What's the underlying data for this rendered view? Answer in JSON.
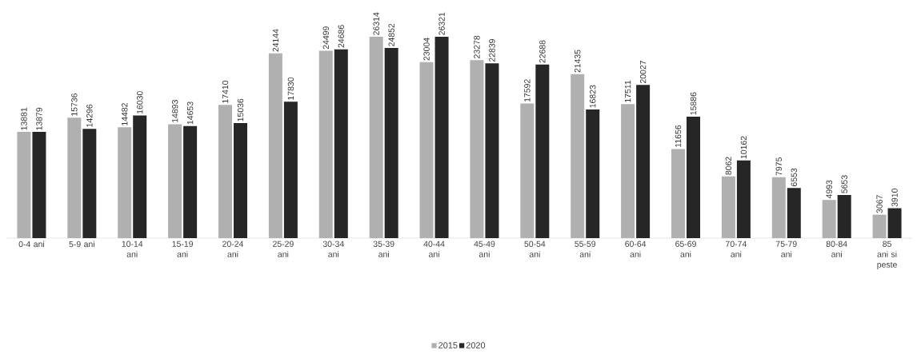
{
  "chart_data": {
    "type": "bar",
    "categories": [
      "0-4 ani",
      "5-9 ani",
      "10-14 ani",
      "15-19 ani",
      "20-24 ani",
      "25-29 ani",
      "30-34 ani",
      "35-39 ani",
      "40-44 ani",
      "45-49 ani",
      "50-54 ani",
      "55-59 ani",
      "60-64 ani",
      "65-69 ani",
      "70-74 ani",
      "75-79 ani",
      "80-84 ani",
      "85 ani si peste"
    ],
    "series": [
      {
        "name": "2015",
        "color": "#b0b0b0",
        "values": [
          13881,
          15736,
          14482,
          14893,
          17410,
          24144,
          24499,
          26314,
          23004,
          23278,
          17592,
          21435,
          17511,
          11656,
          8062,
          7975,
          4993,
          3067
        ]
      },
      {
        "name": "2020",
        "color": "#262626",
        "values": [
          13879,
          14296,
          16030,
          14653,
          15036,
          17830,
          24686,
          24852,
          26321,
          22839,
          22688,
          16823,
          20027,
          15886,
          10162,
          6553,
          5653,
          3910
        ]
      }
    ],
    "data_labels": true,
    "legend": "bottom"
  }
}
